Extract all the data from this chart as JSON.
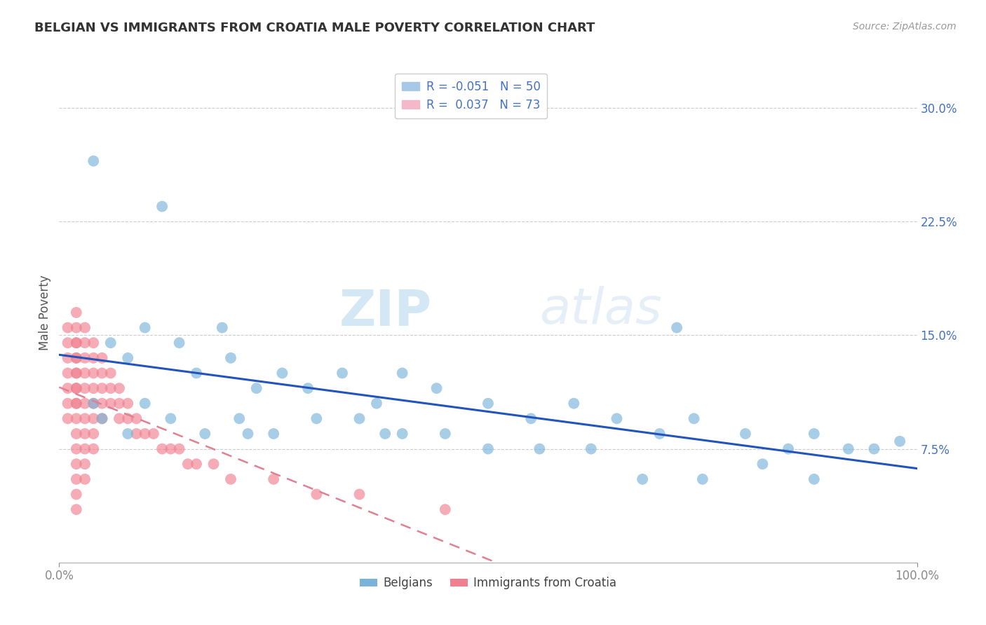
{
  "title": "BELGIAN VS IMMIGRANTS FROM CROATIA MALE POVERTY CORRELATION CHART",
  "source": "Source: ZipAtlas.com",
  "ylabel": "Male Poverty",
  "ytick_labels": [
    "7.5%",
    "15.0%",
    "22.5%",
    "30.0%"
  ],
  "ytick_values": [
    0.075,
    0.15,
    0.225,
    0.3
  ],
  "xlim": [
    0.0,
    1.0
  ],
  "ylim": [
    0.0,
    0.33
  ],
  "belgian_color": "#7ab3d9",
  "immigrant_color": "#f08090",
  "belgian_line_color": "#2255bb",
  "immigrant_line_color": "#e08090",
  "watermark_zip": "ZIP",
  "watermark_atlas": "atlas",
  "belgians_x": [
    0.04,
    0.12,
    0.19,
    0.04,
    0.06,
    0.08,
    0.1,
    0.14,
    0.16,
    0.2,
    0.23,
    0.26,
    0.29,
    0.33,
    0.37,
    0.4,
    0.44,
    0.5,
    0.55,
    0.6,
    0.65,
    0.7,
    0.74,
    0.8,
    0.85,
    0.88,
    0.92,
    0.95,
    0.98,
    0.05,
    0.08,
    0.1,
    0.13,
    0.17,
    0.21,
    0.25,
    0.3,
    0.35,
    0.4,
    0.45,
    0.5,
    0.56,
    0.62,
    0.68,
    0.75,
    0.82,
    0.88,
    0.22,
    0.38,
    0.72
  ],
  "belgians_y": [
    0.265,
    0.235,
    0.155,
    0.105,
    0.145,
    0.135,
    0.155,
    0.145,
    0.125,
    0.135,
    0.115,
    0.125,
    0.115,
    0.125,
    0.105,
    0.125,
    0.115,
    0.105,
    0.095,
    0.105,
    0.095,
    0.085,
    0.095,
    0.085,
    0.075,
    0.085,
    0.075,
    0.075,
    0.08,
    0.095,
    0.085,
    0.105,
    0.095,
    0.085,
    0.095,
    0.085,
    0.095,
    0.095,
    0.085,
    0.085,
    0.075,
    0.075,
    0.075,
    0.055,
    0.055,
    0.065,
    0.055,
    0.085,
    0.085,
    0.155
  ],
  "immigrants_x": [
    0.01,
    0.01,
    0.01,
    0.01,
    0.01,
    0.01,
    0.01,
    0.02,
    0.02,
    0.02,
    0.02,
    0.02,
    0.02,
    0.02,
    0.02,
    0.02,
    0.02,
    0.02,
    0.02,
    0.02,
    0.02,
    0.02,
    0.02,
    0.02,
    0.02,
    0.02,
    0.03,
    0.03,
    0.03,
    0.03,
    0.03,
    0.03,
    0.03,
    0.03,
    0.03,
    0.03,
    0.03,
    0.04,
    0.04,
    0.04,
    0.04,
    0.04,
    0.04,
    0.04,
    0.04,
    0.05,
    0.05,
    0.05,
    0.05,
    0.05,
    0.06,
    0.06,
    0.06,
    0.07,
    0.07,
    0.07,
    0.08,
    0.08,
    0.09,
    0.09,
    0.1,
    0.11,
    0.12,
    0.13,
    0.14,
    0.15,
    0.16,
    0.18,
    0.2,
    0.25,
    0.3,
    0.35,
    0.45
  ],
  "immigrants_y": [
    0.155,
    0.145,
    0.135,
    0.125,
    0.115,
    0.105,
    0.095,
    0.165,
    0.155,
    0.145,
    0.135,
    0.125,
    0.115,
    0.105,
    0.095,
    0.085,
    0.075,
    0.065,
    0.055,
    0.045,
    0.035,
    0.145,
    0.135,
    0.125,
    0.115,
    0.105,
    0.155,
    0.145,
    0.135,
    0.125,
    0.115,
    0.105,
    0.095,
    0.085,
    0.075,
    0.065,
    0.055,
    0.145,
    0.135,
    0.125,
    0.115,
    0.105,
    0.095,
    0.085,
    0.075,
    0.135,
    0.125,
    0.115,
    0.105,
    0.095,
    0.125,
    0.115,
    0.105,
    0.115,
    0.105,
    0.095,
    0.105,
    0.095,
    0.095,
    0.085,
    0.085,
    0.085,
    0.075,
    0.075,
    0.075,
    0.065,
    0.065,
    0.065,
    0.055,
    0.055,
    0.045,
    0.045,
    0.035
  ]
}
